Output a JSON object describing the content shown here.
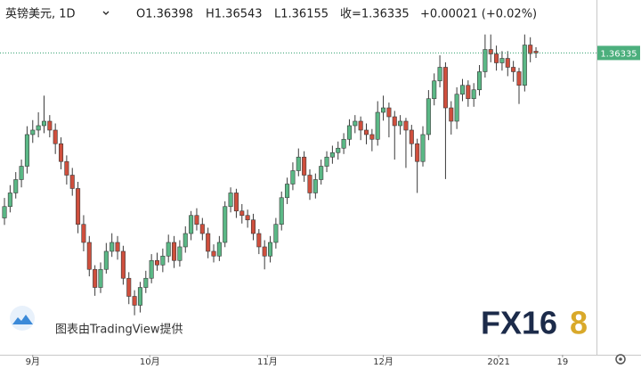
{
  "header": {
    "symbol": "英镑美元, 1D",
    "open": "O1.36398",
    "high": "H1.36543",
    "low": "L1.36155",
    "close": "收=1.36335",
    "change": "+0.00021 (+0.02%)"
  },
  "watermark": "图表由TradingView提供",
  "logo": {
    "main": "FX16",
    "accent": "8"
  },
  "chart_data": {
    "type": "candlestick",
    "up_color": "#5bb886",
    "down_color": "#cf4f3d",
    "border_color": "#3a3a3a",
    "xlim": [
      -0.79,
      104.7
    ],
    "ylim": [
      1.2548,
      1.3824
    ],
    "xticks": [
      {
        "value": 5,
        "label": "9月"
      },
      {
        "value": 25.7,
        "label": "10月"
      },
      {
        "value": 46.5,
        "label": "11月"
      },
      {
        "value": 67,
        "label": "12月"
      },
      {
        "value": 87.4,
        "label": "2021"
      },
      {
        "value": 98.7,
        "label": "19"
      }
    ],
    "last_price": 1.36335,
    "candles": [
      [
        1.304,
        1.3112,
        1.3015,
        1.3081
      ],
      [
        1.3081,
        1.3158,
        1.306,
        1.313
      ],
      [
        1.313,
        1.3205,
        1.311,
        1.3178
      ],
      [
        1.3178,
        1.325,
        1.315,
        1.3226
      ],
      [
        1.3226,
        1.337,
        1.32,
        1.334
      ],
      [
        1.334,
        1.3392,
        1.331,
        1.3356
      ],
      [
        1.3356,
        1.342,
        1.333,
        1.3372
      ],
      [
        1.3372,
        1.348,
        1.3345,
        1.3388
      ],
      [
        1.3388,
        1.341,
        1.333,
        1.3356
      ],
      [
        1.3356,
        1.338,
        1.327,
        1.3307
      ],
      [
        1.3307,
        1.333,
        1.3215,
        1.3243
      ],
      [
        1.3243,
        1.3265,
        1.316,
        1.3194
      ],
      [
        1.3194,
        1.322,
        1.312,
        1.3146
      ],
      [
        1.3146,
        1.317,
        1.2985,
        1.3017
      ],
      [
        1.3017,
        1.305,
        1.292,
        1.2952
      ],
      [
        1.2952,
        1.2975,
        1.283,
        1.2855
      ],
      [
        1.2855,
        1.287,
        1.276,
        1.279
      ],
      [
        1.279,
        1.288,
        1.277,
        1.2855
      ],
      [
        1.2855,
        1.295,
        1.284,
        1.292
      ],
      [
        1.292,
        1.2985,
        1.29,
        1.2952
      ],
      [
        1.2952,
        1.2975,
        1.289,
        1.292
      ],
      [
        1.292,
        1.294,
        1.28,
        1.2823
      ],
      [
        1.2823,
        1.2845,
        1.273,
        1.2758
      ],
      [
        1.2758,
        1.278,
        1.269,
        1.2726
      ],
      [
        1.2726,
        1.281,
        1.27,
        1.279
      ],
      [
        1.279,
        1.285,
        1.277,
        1.2823
      ],
      [
        1.2823,
        1.291,
        1.2805,
        1.2887
      ],
      [
        1.2887,
        1.2915,
        1.285,
        1.2871
      ],
      [
        1.2871,
        1.293,
        1.2845,
        1.2903
      ],
      [
        1.2903,
        1.298,
        1.288,
        1.2952
      ],
      [
        1.2952,
        1.2975,
        1.286,
        1.2887
      ],
      [
        1.2887,
        1.296,
        1.2865,
        1.2936
      ],
      [
        1.2936,
        1.301,
        1.2915,
        1.2984
      ],
      [
        1.2984,
        1.3065,
        1.296,
        1.3049
      ],
      [
        1.3049,
        1.3075,
        1.2995,
        1.3017
      ],
      [
        1.3017,
        1.304,
        1.296,
        1.2984
      ],
      [
        1.2984,
        1.3005,
        1.2895,
        1.292
      ],
      [
        1.292,
        1.2945,
        1.288,
        1.2903
      ],
      [
        1.2903,
        1.2975,
        1.2885,
        1.2952
      ],
      [
        1.2952,
        1.31,
        1.2935,
        1.3081
      ],
      [
        1.3081,
        1.315,
        1.306,
        1.313
      ],
      [
        1.313,
        1.3145,
        1.304,
        1.3065
      ],
      [
        1.3065,
        1.309,
        1.302,
        1.3049
      ],
      [
        1.3049,
        1.307,
        1.3005,
        1.3033
      ],
      [
        1.3033,
        1.3055,
        1.296,
        1.2984
      ],
      [
        1.2984,
        1.3,
        1.291,
        1.2936
      ],
      [
        1.2936,
        1.296,
        1.2855,
        1.2903
      ],
      [
        1.2903,
        1.2975,
        1.288,
        1.2952
      ],
      [
        1.2952,
        1.304,
        1.293,
        1.3017
      ],
      [
        1.3017,
        1.3135,
        1.2995,
        1.3113
      ],
      [
        1.3113,
        1.3185,
        1.309,
        1.3162
      ],
      [
        1.3162,
        1.324,
        1.314,
        1.321
      ],
      [
        1.321,
        1.329,
        1.319,
        1.3259
      ],
      [
        1.3259,
        1.328,
        1.317,
        1.3194
      ],
      [
        1.3194,
        1.3215,
        1.3105,
        1.313
      ],
      [
        1.313,
        1.32,
        1.311,
        1.3178
      ],
      [
        1.3178,
        1.325,
        1.316,
        1.3226
      ],
      [
        1.3226,
        1.328,
        1.3205,
        1.3259
      ],
      [
        1.3259,
        1.33,
        1.3235,
        1.3275
      ],
      [
        1.3275,
        1.3315,
        1.325,
        1.3291
      ],
      [
        1.3291,
        1.3345,
        1.327,
        1.3323
      ],
      [
        1.3323,
        1.3395,
        1.33,
        1.3372
      ],
      [
        1.3372,
        1.341,
        1.3345,
        1.3388
      ],
      [
        1.3388,
        1.3405,
        1.332,
        1.3356
      ],
      [
        1.3356,
        1.338,
        1.3305,
        1.334
      ],
      [
        1.334,
        1.336,
        1.328,
        1.3323
      ],
      [
        1.3323,
        1.346,
        1.33,
        1.342
      ],
      [
        1.342,
        1.348,
        1.339,
        1.3436
      ],
      [
        1.3436,
        1.3455,
        1.333,
        1.3404
      ],
      [
        1.3404,
        1.3425,
        1.325,
        1.3372
      ],
      [
        1.3372,
        1.341,
        1.334,
        1.3388
      ],
      [
        1.3388,
        1.34,
        1.322,
        1.3356
      ],
      [
        1.3356,
        1.3375,
        1.326,
        1.3307
      ],
      [
        1.3307,
        1.3325,
        1.313,
        1.3243
      ],
      [
        1.3243,
        1.337,
        1.3225,
        1.334
      ],
      [
        1.334,
        1.35,
        1.332,
        1.3469
      ],
      [
        1.3469,
        1.356,
        1.3445,
        1.3533
      ],
      [
        1.3533,
        1.3625,
        1.351,
        1.3582
      ],
      [
        1.3582,
        1.36,
        1.318,
        1.3436
      ],
      [
        1.3436,
        1.346,
        1.334,
        1.3388
      ],
      [
        1.3388,
        1.351,
        1.336,
        1.3485
      ],
      [
        1.3485,
        1.354,
        1.346,
        1.3517
      ],
      [
        1.3517,
        1.3535,
        1.344,
        1.3469
      ],
      [
        1.3469,
        1.3525,
        1.344,
        1.3501
      ],
      [
        1.3501,
        1.359,
        1.348,
        1.3566
      ],
      [
        1.3566,
        1.37,
        1.3545,
        1.3646
      ],
      [
        1.3646,
        1.37,
        1.36,
        1.363
      ],
      [
        1.363,
        1.366,
        1.357,
        1.3598
      ],
      [
        1.3598,
        1.364,
        1.357,
        1.3614
      ],
      [
        1.3614,
        1.364,
        1.355,
        1.3582
      ],
      [
        1.3582,
        1.3605,
        1.353,
        1.3566
      ],
      [
        1.3566,
        1.358,
        1.345,
        1.3517
      ],
      [
        1.3517,
        1.37,
        1.3495,
        1.3662
      ],
      [
        1.3662,
        1.369,
        1.36,
        1.36314
      ],
      [
        1.36398,
        1.36543,
        1.36155,
        1.36335
      ]
    ]
  }
}
